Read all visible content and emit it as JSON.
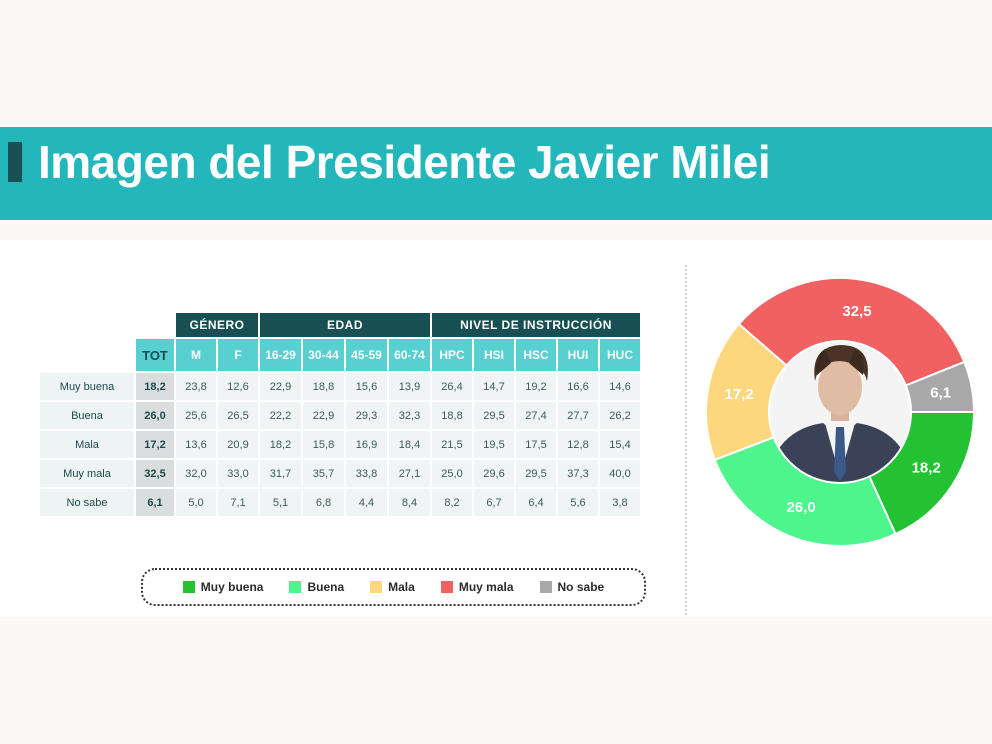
{
  "title": "Imagen del Presidente Javier Milei",
  "table": {
    "groups": [
      "GÉNERO",
      "EDAD",
      "NIVEL DE INSTRUCCIÓN"
    ],
    "columns": [
      "TOT",
      "M",
      "F",
      "16-29",
      "30-44",
      "45-59",
      "60-74",
      "HPC",
      "HSI",
      "HSC",
      "HUI",
      "HUC"
    ],
    "rows": [
      {
        "label": "Muy buena",
        "values": [
          "18,2",
          "23,8",
          "12,6",
          "22,9",
          "18,8",
          "15,6",
          "13,9",
          "26,4",
          "14,7",
          "19,2",
          "16,6",
          "14,6"
        ]
      },
      {
        "label": "Buena",
        "values": [
          "26,0",
          "25,6",
          "26,5",
          "22,2",
          "22,9",
          "29,3",
          "32,3",
          "18,8",
          "29,5",
          "27,4",
          "27,7",
          "26,2"
        ]
      },
      {
        "label": "Mala",
        "values": [
          "17,2",
          "13,6",
          "20,9",
          "18,2",
          "15,8",
          "16,9",
          "18,4",
          "21,5",
          "19,5",
          "17,5",
          "12,8",
          "15,4"
        ]
      },
      {
        "label": "Muy mala",
        "values": [
          "32,5",
          "32,0",
          "33,0",
          "31,7",
          "35,7",
          "33,8",
          "27,1",
          "25,0",
          "29,6",
          "29,5",
          "37,3",
          "40,0"
        ]
      },
      {
        "label": "No sabe",
        "values": [
          "6,1",
          "5,0",
          "7,1",
          "5,1",
          "6,8",
          "4,4",
          "8,4",
          "8,2",
          "6,7",
          "6,4",
          "5,6",
          "3,8"
        ]
      }
    ]
  },
  "legend": [
    {
      "label": "Muy buena",
      "color": "#22c232"
    },
    {
      "label": "Buena",
      "color": "#4ef58c"
    },
    {
      "label": "Mala",
      "color": "#fcd77e"
    },
    {
      "label": "Muy mala",
      "color": "#f16161"
    },
    {
      "label": "No sabe",
      "color": "#a8a8a8"
    }
  ],
  "chart_data": {
    "type": "pie",
    "categories": [
      "Muy buena",
      "Buena",
      "Mala",
      "Muy mala",
      "No sabe"
    ],
    "values": [
      18.2,
      26.0,
      17.2,
      32.5,
      6.1
    ],
    "labels": [
      "18,2",
      "26,0",
      "17,2",
      "32,5",
      "6,1"
    ],
    "colors": [
      "#22c232",
      "#4ef58c",
      "#fcd77e",
      "#f16161",
      "#a8a8a8"
    ],
    "center_image": "portrait-photo"
  }
}
